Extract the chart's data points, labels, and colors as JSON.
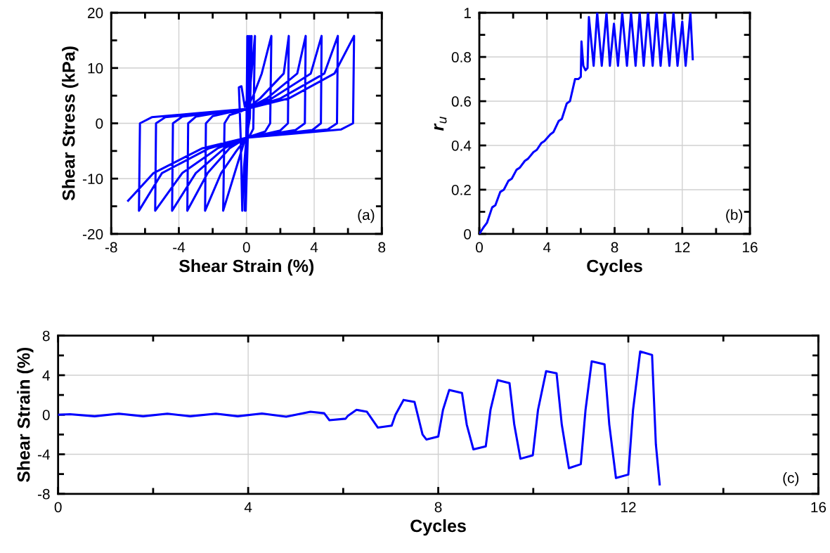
{
  "chart_data": [
    {
      "type": "line",
      "xlabel": "Shear Strain (%)",
      "ylabel": "Shear Stress (kPa)",
      "annotations": [
        "(a)"
      ],
      "grid": true,
      "line_style": "solid",
      "marker": "none",
      "xlim": [
        -8,
        8
      ],
      "xticks": [
        -8,
        {
          "value": -6,
          "label": null
        },
        -4,
        {
          "value": -2,
          "label": null
        },
        0,
        {
          "value": 2,
          "label": null
        },
        4,
        {
          "value": 6,
          "label": null
        },
        8
      ],
      "ylim": [
        -20,
        20
      ],
      "yticks": [
        -20,
        {
          "value": -15,
          "label": null
        },
        -10,
        {
          "value": -5,
          "label": null
        },
        0,
        {
          "value": 5,
          "label": null
        },
        10,
        {
          "value": 15,
          "label": null
        },
        20
      ],
      "series": [
        {
          "color": "#0000ff",
          "x": [
            0,
            0.05,
            0,
            -0.05,
            0.02,
            0.1,
            0.05,
            -0.1,
            0,
            0.2,
            0.1,
            -0.05,
            0.05,
            0.3,
            0.2,
            0,
            -0.15,
            -0.25,
            -0.35,
            -0.45,
            -0.3,
            -0.1,
            0.2,
            0.5,
            0.4,
            0.2,
            -0.1,
            -0.4,
            -0.8,
            -1.38,
            -1.3,
            -1.0,
            -0.3,
            0,
            0.4,
            0.9,
            1.47,
            1.4,
            1.1,
            0.4,
            0,
            -0.6,
            -1.5,
            -2.45,
            -2.4,
            -2.0,
            -1.0,
            0,
            0.8,
            2.2,
            2.5,
            2.45,
            2.0,
            1.0,
            0,
            -1.0,
            -2.3,
            -3.5,
            -3.45,
            -3.0,
            -1.5,
            0,
            1.2,
            3.0,
            3.5,
            3.45,
            2.9,
            1.5,
            0,
            -1.3,
            -3.0,
            -4.4,
            -4.35,
            -3.8,
            -2.0,
            0,
            1.5,
            3.8,
            4.44,
            4.4,
            3.9,
            2.0,
            0,
            -1.7,
            -3.8,
            -5.4,
            -5.35,
            -4.8,
            -2.5,
            0,
            2.0,
            4.6,
            5.4,
            5.35,
            4.8,
            2.5,
            0,
            -2.2,
            -5.0,
            -6.36,
            -6.3,
            -5.6,
            -3.0,
            0,
            2.5,
            5.2,
            6.36,
            6.3,
            5.6,
            3.0,
            0,
            -2.6,
            -5.5,
            -7.0
          ],
          "values": [
            0,
            15.8,
            0,
            -15.8,
            0,
            15.8,
            0,
            -15.8,
            0,
            15.8,
            0,
            -15.8,
            0,
            15.8,
            1,
            -2.5,
            -8,
            -15.8,
            -2,
            6.5,
            6.7,
            3,
            6,
            15.8,
            -1,
            -2.2,
            -3,
            -6,
            -10,
            -15.8,
            0,
            1.5,
            2.2,
            2.6,
            5,
            9,
            15.8,
            0,
            -1.5,
            -2.2,
            -2.6,
            -5,
            -9,
            -15.8,
            0,
            1.3,
            2.0,
            2.6,
            4.5,
            9,
            15.8,
            0,
            -1.3,
            -2.0,
            -2.6,
            -4.5,
            -9,
            -15.8,
            0,
            1.2,
            2.0,
            2.6,
            4.5,
            9,
            15.8,
            0,
            -1.2,
            -1.9,
            -2.6,
            -4.5,
            -9,
            -15.8,
            0,
            1.2,
            1.9,
            2.6,
            4.5,
            9,
            15.8,
            0,
            -1.2,
            -1.9,
            -2.6,
            -4.5,
            -9,
            -15.8,
            0,
            1.1,
            1.8,
            2.6,
            4.5,
            9,
            15.8,
            0,
            -1.1,
            -1.8,
            -2.6,
            -4.5,
            -9,
            -15.8,
            0,
            1.1,
            1.8,
            2.6,
            4.5,
            9,
            15.8,
            0,
            -1.1,
            -1.8,
            -2.6,
            -4.5,
            -9,
            -14
          ]
        }
      ]
    },
    {
      "type": "line",
      "xlabel": "Cycles",
      "ylabel": "r$_{u}$",
      "annotations": [
        "(b)"
      ],
      "grid": true,
      "line_style": "solid",
      "marker": "none",
      "xlim": [
        0,
        16
      ],
      "xticks": [
        0,
        {
          "value": 2,
          "label": null
        },
        4,
        {
          "value": 6,
          "label": null
        },
        8,
        {
          "value": 10,
          "label": null
        },
        12,
        {
          "value": 14,
          "label": null
        },
        16
      ],
      "ylim": [
        0,
        1
      ],
      "yticks": [
        0,
        {
          "value": 0.1,
          "label": null
        },
        0.2,
        {
          "value": 0.3,
          "label": null
        },
        0.4,
        {
          "value": 0.5,
          "label": null
        },
        0.6,
        {
          "value": 0.7,
          "label": null
        },
        0.8,
        {
          "value": 0.9,
          "label": null
        },
        1
      ],
      "series": [
        {
          "color": "#0000ff",
          "x": [
            0,
            0.25,
            0.45,
            0.76,
            0.95,
            1.24,
            1.45,
            1.72,
            1.92,
            2.2,
            2.4,
            2.69,
            2.88,
            3.2,
            3.4,
            3.66,
            3.85,
            4.2,
            4.38,
            4.69,
            4.88,
            5.17,
            5.36,
            5.66,
            5.85,
            6.0,
            6.04,
            6.15,
            6.28,
            6.4,
            6.48,
            6.76,
            6.97,
            7.24,
            7.52,
            7.72,
            7.96,
            8.2,
            8.45,
            8.73,
            8.97,
            9.24,
            9.48,
            9.72,
            9.97,
            10.25,
            10.48,
            10.72,
            10.97,
            11.24,
            11.48,
            11.72,
            12.0,
            12.2,
            12.48,
            12.62
          ],
          "values": [
            0,
            0.03,
            0.05,
            0.12,
            0.13,
            0.19,
            0.2,
            0.24,
            0.25,
            0.29,
            0.3,
            0.33,
            0.34,
            0.37,
            0.38,
            0.41,
            0.42,
            0.45,
            0.46,
            0.51,
            0.52,
            0.59,
            0.6,
            0.7,
            0.7,
            0.71,
            0.87,
            0.76,
            0.74,
            0.75,
            0.98,
            0.76,
            1.0,
            0.76,
            1.0,
            0.76,
            0.95,
            0.76,
            1.0,
            0.76,
            1.0,
            0.76,
            1.0,
            0.76,
            1.0,
            0.76,
            1.0,
            0.76,
            1.0,
            0.76,
            1.0,
            0.76,
            0.96,
            0.76,
            1.0,
            0.79
          ]
        }
      ]
    },
    {
      "type": "line",
      "xlabel": "Cycles",
      "ylabel": "Shear Strain (%)",
      "annotations": [
        "(c)"
      ],
      "grid": true,
      "line_style": "solid",
      "marker": "none",
      "xlim": [
        0,
        16
      ],
      "xticks": [
        0,
        {
          "value": 2,
          "label": null
        },
        4,
        {
          "value": 6,
          "label": null
        },
        8,
        {
          "value": 10,
          "label": null
        },
        12,
        {
          "value": 14,
          "label": null
        },
        16
      ],
      "ylim": [
        -8,
        8
      ],
      "yticks": [
        -8,
        {
          "value": -6,
          "label": null
        },
        -4,
        {
          "value": -2,
          "label": null
        },
        0,
        {
          "value": 2,
          "label": null
        },
        4,
        {
          "value": 6,
          "label": null
        },
        8
      ],
      "series": [
        {
          "color": "#0000ff",
          "x": [
            0,
            0.25,
            0.77,
            1.28,
            1.79,
            2.3,
            2.78,
            3.32,
            3.78,
            4.29,
            4.8,
            5.31,
            5.6,
            5.71,
            6.05,
            6.1,
            6.28,
            6.5,
            6.73,
            7.02,
            7.1,
            7.27,
            7.5,
            7.67,
            7.75,
            8.0,
            8.1,
            8.23,
            8.5,
            8.6,
            8.74,
            9.0,
            9.1,
            9.25,
            9.5,
            9.6,
            9.73,
            9.99,
            10.1,
            10.27,
            10.49,
            10.6,
            10.75,
            11.0,
            11.1,
            11.23,
            11.5,
            11.6,
            11.74,
            12.0,
            12.1,
            12.25,
            12.5,
            12.58,
            12.66
          ],
          "values": [
            0,
            0.05,
            -0.15,
            0.1,
            -0.15,
            0.1,
            -0.15,
            0.1,
            -0.15,
            0.12,
            -0.2,
            0.3,
            0.15,
            -0.55,
            -0.4,
            -0.1,
            0.5,
            0.3,
            -1.3,
            -1.1,
            0.0,
            1.5,
            1.3,
            -2.0,
            -2.5,
            -2.2,
            0.5,
            2.5,
            2.2,
            -1.0,
            -3.5,
            -3.2,
            0.5,
            3.5,
            3.2,
            -1.0,
            -4.45,
            -4.1,
            0.5,
            4.4,
            4.2,
            -1.0,
            -5.4,
            -5.0,
            0.5,
            5.4,
            5.1,
            -1.0,
            -6.4,
            -6.05,
            0.5,
            6.4,
            6.05,
            -3.0,
            -7.05
          ]
        }
      ]
    }
  ]
}
